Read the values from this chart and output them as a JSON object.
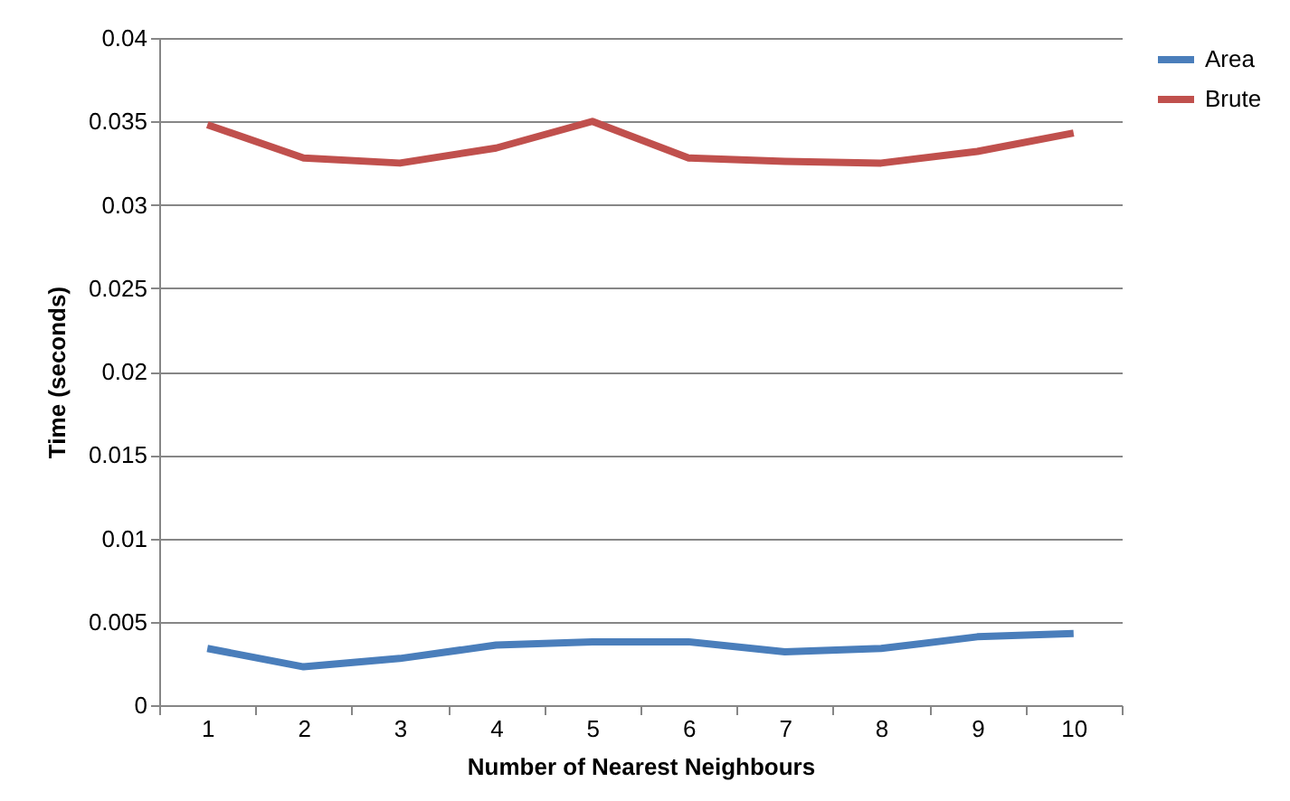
{
  "chart_data": {
    "type": "line",
    "xlabel": "Number of Nearest Neighbours",
    "ylabel": "Time (seconds)",
    "categories": [
      "1",
      "2",
      "3",
      "4",
      "5",
      "6",
      "7",
      "8",
      "9",
      "10"
    ],
    "series": [
      {
        "name": "Area",
        "color": "#4a7ebb",
        "values": [
          0.0034,
          0.0023,
          0.0028,
          0.0036,
          0.0038,
          0.0038,
          0.0032,
          0.0034,
          0.0041,
          0.0043
        ]
      },
      {
        "name": "Brute",
        "color": "#c0504d",
        "values": [
          0.0348,
          0.0328,
          0.0325,
          0.0334,
          0.035,
          0.0328,
          0.0326,
          0.0325,
          0.0332,
          0.0343
        ]
      }
    ],
    "ylim": [
      0,
      0.04
    ],
    "yticks": [
      0,
      0.005,
      0.01,
      0.015,
      0.02,
      0.025,
      0.03,
      0.035,
      0.04
    ],
    "grid": "y",
    "legend": "right",
    "marker": "none",
    "line_style": "solid"
  }
}
